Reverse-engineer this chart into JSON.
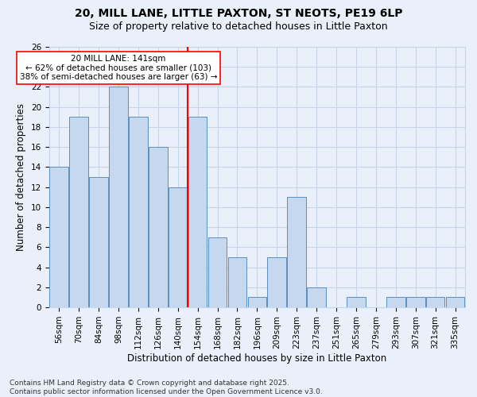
{
  "title1": "20, MILL LANE, LITTLE PAXTON, ST NEOTS, PE19 6LP",
  "title2": "Size of property relative to detached houses in Little Paxton",
  "xlabel": "Distribution of detached houses by size in Little Paxton",
  "ylabel": "Number of detached properties",
  "categories": [
    "56sqm",
    "70sqm",
    "84sqm",
    "98sqm",
    "112sqm",
    "126sqm",
    "140sqm",
    "154sqm",
    "168sqm",
    "182sqm",
    "196sqm",
    "209sqm",
    "223sqm",
    "237sqm",
    "251sqm",
    "265sqm",
    "279sqm",
    "293sqm",
    "307sqm",
    "321sqm",
    "335sqm"
  ],
  "values": [
    14,
    19,
    13,
    22,
    19,
    16,
    12,
    19,
    7,
    5,
    1,
    5,
    11,
    2,
    0,
    1,
    0,
    1,
    1,
    1,
    1
  ],
  "bar_color": "#c5d8ed",
  "bar_edge_color": "#5a8fc0",
  "grid_color": "#c8d4e8",
  "background_color": "#eaf0f9",
  "vline_x_idx": 6.5,
  "vline_color": "red",
  "annotation_line1": "20 MILL LANE: 141sqm",
  "annotation_line2": "← 62% of detached houses are smaller (103)",
  "annotation_line3": "38% of semi-detached houses are larger (63) →",
  "annotation_box_color": "white",
  "annotation_box_edge": "red",
  "ylim": [
    0,
    26
  ],
  "yticks": [
    0,
    2,
    4,
    6,
    8,
    10,
    12,
    14,
    16,
    18,
    20,
    22,
    24,
    26
  ],
  "footer": "Contains HM Land Registry data © Crown copyright and database right 2025.\nContains public sector information licensed under the Open Government Licence v3.0.",
  "title1_fontsize": 10,
  "title2_fontsize": 9,
  "xlabel_fontsize": 8.5,
  "ylabel_fontsize": 8.5,
  "tick_fontsize": 7.5,
  "annotation_fontsize": 7.5,
  "footer_fontsize": 6.5
}
